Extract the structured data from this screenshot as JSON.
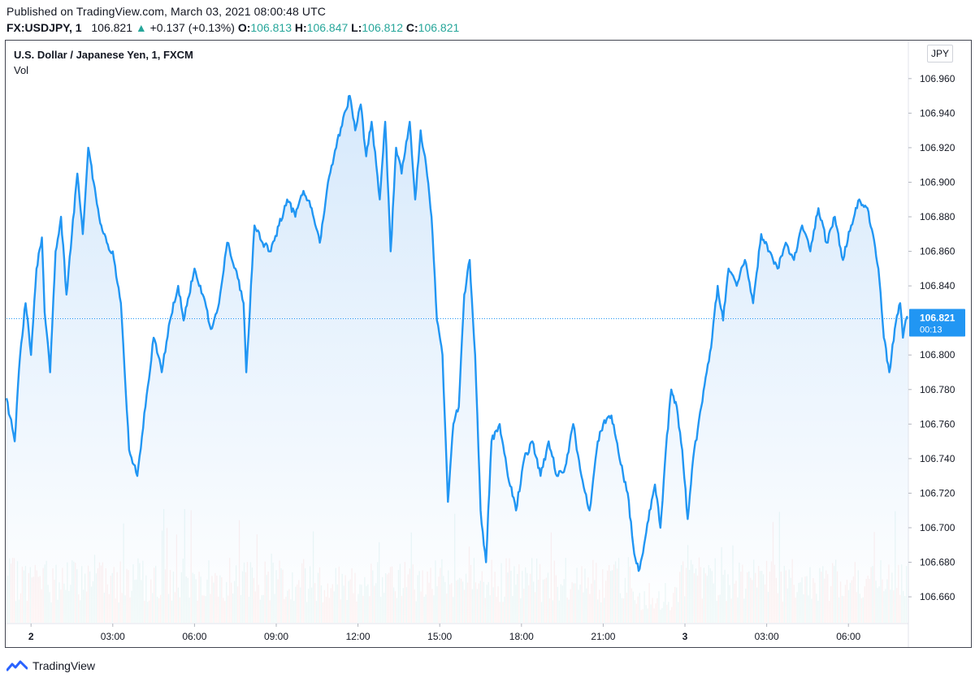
{
  "header": {
    "published": "Published on TradingView.com, March 03, 2021 08:00:48 UTC",
    "symbol": "FX:USDJPY, 1",
    "last": "106.821",
    "change_arrow": "▲",
    "change": "+0.137 (+0.13%)",
    "o_label": "O:",
    "o_value": "106.813",
    "h_label": "H:",
    "h_value": "106.847",
    "l_label": "L:",
    "l_value": "106.812",
    "c_label": "C:",
    "c_value": "106.821"
  },
  "legend": {
    "title": "U.S. Dollar / Japanese Yen, 1, FXCM",
    "volume": "Vol"
  },
  "currency": "JPY",
  "price_label": {
    "price": "106.821",
    "countdown": "00:13"
  },
  "footer": {
    "brand": "TradingView"
  },
  "colors": {
    "line": "#2196f3",
    "area_top": "#cfe5fb",
    "vol_up": "#26a69a",
    "vol_down": "#ef5350",
    "axis_text": "#131722"
  },
  "chart_data": {
    "type": "line",
    "title": "U.S. Dollar / Japanese Yen, 1, FXCM",
    "xlabel": "",
    "ylabel": "JPY",
    "ylim": [
      106.645,
      106.982
    ],
    "y_ticks": [
      "106.660",
      "106.680",
      "106.700",
      "106.720",
      "106.740",
      "106.760",
      "106.780",
      "106.800",
      "106.840",
      "106.860",
      "106.880",
      "106.900",
      "106.920",
      "106.940",
      "106.960"
    ],
    "x_range": [
      -0.9,
      32.2
    ],
    "x_ticks": [
      {
        "t": 0,
        "label": "2",
        "bold": true
      },
      {
        "t": 3,
        "label": "03:00",
        "bold": false
      },
      {
        "t": 6,
        "label": "06:00",
        "bold": false
      },
      {
        "t": 9,
        "label": "09:00",
        "bold": false
      },
      {
        "t": 12,
        "label": "12:00",
        "bold": false
      },
      {
        "t": 15,
        "label": "15:00",
        "bold": false
      },
      {
        "t": 18,
        "label": "18:00",
        "bold": false
      },
      {
        "t": 21,
        "label": "21:00",
        "bold": false
      },
      {
        "t": 24,
        "label": "3",
        "bold": true
      },
      {
        "t": 27,
        "label": "03:00",
        "bold": false
      },
      {
        "t": 30,
        "label": "06:00",
        "bold": false
      }
    ],
    "last_price": 106.821,
    "series": [
      {
        "name": "USDJPY",
        "x": [
          -0.9,
          -0.6,
          -0.4,
          -0.2,
          0.0,
          0.2,
          0.4,
          0.5,
          0.7,
          0.9,
          1.1,
          1.3,
          1.5,
          1.7,
          1.9,
          2.1,
          2.3,
          2.5,
          2.7,
          2.9,
          3.0,
          3.3,
          3.6,
          3.9,
          4.2,
          4.5,
          4.8,
          5.1,
          5.4,
          5.6,
          6.0,
          6.3,
          6.6,
          6.9,
          7.2,
          7.5,
          7.8,
          7.9,
          8.2,
          8.5,
          8.8,
          9.1,
          9.4,
          9.7,
          10.0,
          10.3,
          10.6,
          10.9,
          11.2,
          11.5,
          11.7,
          11.9,
          12.1,
          12.3,
          12.5,
          12.8,
          13.0,
          13.2,
          13.4,
          13.6,
          13.9,
          14.1,
          14.3,
          14.5,
          14.7,
          14.9,
          15.1,
          15.3,
          15.5,
          15.7,
          15.9,
          16.1,
          16.3,
          16.5,
          16.7,
          16.9,
          17.2,
          17.5,
          17.8,
          18.1,
          18.4,
          18.7,
          19.0,
          19.3,
          19.6,
          19.9,
          20.2,
          20.5,
          20.8,
          21.0,
          21.3,
          21.6,
          21.9,
          22.1,
          22.3,
          22.5,
          22.7,
          22.9,
          23.1,
          23.3,
          23.5,
          23.7,
          23.9,
          24.1,
          24.3,
          24.6,
          24.8,
          25.0,
          25.2,
          25.4,
          25.6,
          25.9,
          26.2,
          26.5,
          26.8,
          27.1,
          27.4,
          27.7,
          28.0,
          28.3,
          28.6,
          28.9,
          29.2,
          29.5,
          29.8,
          30.1,
          30.4,
          30.7,
          30.9,
          31.1,
          31.3,
          31.5,
          31.7,
          31.9,
          32.0,
          32.1,
          32.2
        ],
        "values": [
          106.775,
          106.75,
          106.8,
          106.83,
          106.8,
          106.85,
          106.868,
          106.825,
          106.79,
          106.86,
          106.88,
          106.835,
          106.87,
          106.905,
          106.87,
          106.92,
          106.9,
          106.88,
          106.87,
          106.86,
          106.86,
          106.83,
          106.745,
          106.73,
          106.77,
          106.81,
          106.79,
          106.82,
          106.84,
          106.82,
          106.85,
          106.835,
          106.815,
          106.83,
          106.865,
          106.85,
          106.83,
          106.79,
          106.875,
          106.865,
          106.86,
          106.875,
          106.89,
          106.88,
          106.895,
          106.885,
          106.865,
          106.9,
          106.92,
          106.94,
          106.95,
          106.93,
          106.945,
          106.915,
          106.935,
          106.89,
          106.935,
          106.86,
          106.92,
          106.905,
          106.935,
          106.89,
          106.93,
          106.91,
          106.88,
          106.82,
          106.8,
          106.715,
          106.76,
          106.77,
          106.835,
          106.855,
          106.8,
          106.71,
          106.68,
          106.75,
          106.76,
          106.73,
          106.71,
          106.74,
          106.75,
          106.73,
          106.75,
          106.73,
          106.735,
          106.76,
          106.73,
          106.71,
          106.75,
          106.76,
          106.765,
          106.74,
          106.72,
          106.69,
          106.675,
          106.69,
          106.71,
          106.725,
          106.7,
          106.745,
          106.78,
          106.77,
          106.745,
          106.705,
          106.74,
          106.77,
          106.79,
          106.81,
          106.84,
          106.82,
          106.85,
          106.84,
          106.855,
          106.83,
          106.87,
          106.86,
          106.85,
          106.865,
          106.855,
          106.875,
          106.86,
          106.885,
          106.865,
          106.88,
          106.855,
          106.875,
          106.89,
          106.885,
          106.87,
          106.85,
          106.81,
          106.79,
          106.815,
          106.83,
          106.81,
          106.82,
          106.821
        ]
      }
    ],
    "volume": {
      "name": "Vol",
      "scale_max": 1.0,
      "approx_bar_count": 560
    }
  }
}
